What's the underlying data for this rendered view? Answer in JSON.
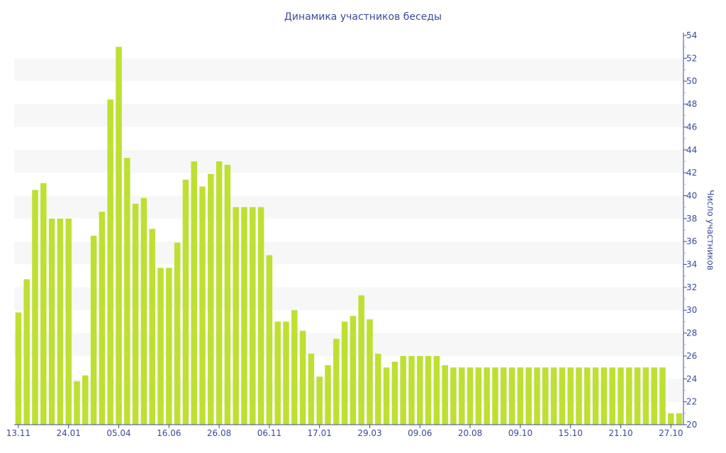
{
  "chart_data": {
    "type": "bar",
    "title": "Динамика участников беседы",
    "xlabel": "",
    "ylabel": "Число участников",
    "ylim": [
      20,
      54
    ],
    "y_ticks": [
      20,
      22,
      24,
      26,
      28,
      30,
      32,
      34,
      36,
      38,
      40,
      42,
      44,
      46,
      48,
      50,
      52,
      54
    ],
    "y_axis_position": "right",
    "grid": "alternating horizontal bands",
    "x_tick_labels": [
      {
        "bar_index": 0,
        "label": "13.11"
      },
      {
        "bar_index": 6,
        "label": "24.01"
      },
      {
        "bar_index": 12,
        "label": "05.04"
      },
      {
        "bar_index": 18,
        "label": "16.06"
      },
      {
        "bar_index": 24,
        "label": "26.08"
      },
      {
        "bar_index": 30,
        "label": "06.11"
      },
      {
        "bar_index": 36,
        "label": "17.01"
      },
      {
        "bar_index": 42,
        "label": "29.03"
      },
      {
        "bar_index": 48,
        "label": "09.06"
      },
      {
        "bar_index": 54,
        "label": "20.08"
      },
      {
        "bar_index": 60,
        "label": "09.10"
      },
      {
        "bar_index": 66,
        "label": "15.10"
      },
      {
        "bar_index": 72,
        "label": "21.10"
      },
      {
        "bar_index": 78,
        "label": "27.10"
      }
    ],
    "values": [
      29.8,
      32.7,
      40.5,
      41.1,
      38,
      38,
      38,
      23.8,
      24.3,
      36.5,
      38.6,
      48.4,
      53,
      43.3,
      39.3,
      39.8,
      37.1,
      33.7,
      33.7,
      35.9,
      41.4,
      43,
      40.8,
      41.9,
      43,
      42.7,
      39,
      39,
      39,
      39,
      34.8,
      29,
      29,
      30,
      28.2,
      26.2,
      24.2,
      25.2,
      27.5,
      29,
      29.5,
      31.3,
      29.2,
      26.2,
      25,
      25.5,
      26,
      26,
      26,
      26,
      26,
      25.2,
      25,
      25,
      25,
      25,
      25,
      25,
      25,
      25,
      25,
      25,
      25,
      25,
      25,
      25,
      25,
      25,
      25,
      25,
      25,
      25,
      25,
      25,
      25,
      25,
      25,
      25,
      21,
      21
    ],
    "colors": {
      "bar": "#bde032",
      "text": "#3b4a9a",
      "axis": "#3b4a9a",
      "band": "#f7f7f7"
    }
  }
}
